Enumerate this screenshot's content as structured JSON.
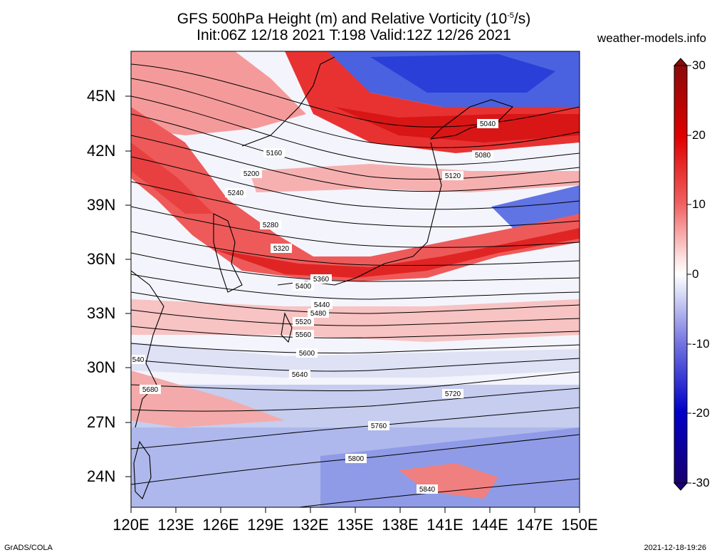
{
  "title": {
    "line1": "GFS 500hPa Height (m) and Relative Vorticity (10",
    "line1_exp": "-5",
    "line1_end": "/s)",
    "line2": "Init:06Z 12/18 2021 T:198 Valid:12Z 12/26 2021"
  },
  "credit": "weather-models.info",
  "footer": {
    "left": "GrADS/COLA",
    "right": "2021-12-18-19:26"
  },
  "lat_labels": [
    "45N",
    "42N",
    "39N",
    "36N",
    "33N",
    "30N",
    "27N",
    "24N"
  ],
  "lon_labels": [
    "120E",
    "123E",
    "126E",
    "129E",
    "132E",
    "135E",
    "138E",
    "141E",
    "144E",
    "147E",
    "150E"
  ],
  "colorbar": {
    "labels": [
      "30",
      "20",
      "10",
      "0",
      "-10",
      "-20",
      "-30"
    ],
    "colors": [
      "#8b0a0a",
      "#e00000",
      "#f06060",
      "#ffffff",
      "#7070e0",
      "#0000c8",
      "#1a0070"
    ]
  },
  "contours": [
    {
      "label": "5040"
    },
    {
      "label": "5080"
    },
    {
      "label": "5120"
    },
    {
      "label": "5160"
    },
    {
      "label": "5200"
    },
    {
      "label": "5240"
    },
    {
      "label": "5280"
    },
    {
      "label": "5320"
    },
    {
      "label": "5360"
    },
    {
      "label": "5400"
    },
    {
      "label": "5440"
    },
    {
      "label": "5480"
    },
    {
      "label": "5520"
    },
    {
      "label": "5560"
    },
    {
      "label": "5600"
    },
    {
      "label": "5640"
    },
    {
      "label": "5680"
    },
    {
      "label": "5720"
    },
    {
      "label": "5760"
    },
    {
      "label": "5800"
    },
    {
      "label": "5840"
    },
    {
      "label": "540"
    }
  ]
}
